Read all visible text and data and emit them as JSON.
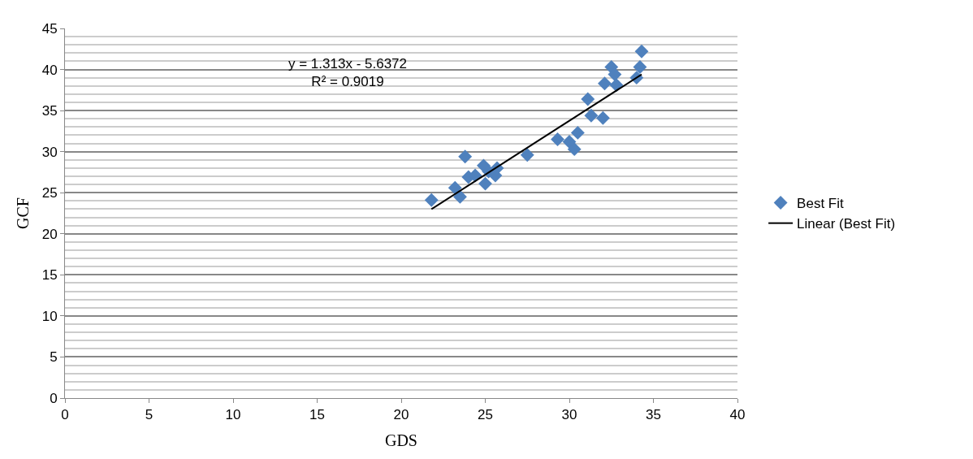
{
  "chart_data": {
    "type": "scatter",
    "xlabel": "GDS",
    "ylabel": "GCF",
    "xlim": [
      0,
      40
    ],
    "xticks": [
      0,
      5,
      10,
      15,
      20,
      25,
      30,
      35,
      40
    ],
    "ylim": [
      0,
      45
    ],
    "yticks": [
      0,
      5,
      10,
      15,
      20,
      25,
      30,
      35,
      40,
      45
    ],
    "grid": "y",
    "legend": "right",
    "annotations": [
      "y = 1.313x - 5.6372",
      "R² = 0.9019"
    ],
    "series": [
      {
        "name": "Best Fit",
        "marker": "diamond",
        "color": "#4f81bd",
        "x": [
          21.8,
          23.2,
          23.5,
          23.8,
          24.0,
          24.4,
          24.9,
          25.0,
          25.2,
          25.6,
          25.7,
          27.5,
          29.3,
          30.0,
          30.3,
          30.5,
          31.1,
          31.3,
          32.0,
          32.1,
          32.5,
          32.7,
          32.8,
          34.0,
          34.2,
          34.3
        ],
        "values": [
          24.1,
          25.6,
          24.5,
          29.4,
          26.9,
          27.1,
          28.3,
          26.1,
          27.6,
          27.1,
          28.0,
          29.6,
          31.5,
          31.2,
          30.3,
          32.3,
          36.4,
          34.4,
          34.1,
          38.3,
          40.3,
          39.4,
          38.1,
          39.0,
          40.3,
          42.2
        ]
      },
      {
        "name": "Linear (Best Fit)",
        "type": "line",
        "marker": "none",
        "color": "#000000",
        "x": [
          21.8,
          34.3
        ],
        "values": [
          23.0,
          39.4
        ]
      }
    ]
  }
}
